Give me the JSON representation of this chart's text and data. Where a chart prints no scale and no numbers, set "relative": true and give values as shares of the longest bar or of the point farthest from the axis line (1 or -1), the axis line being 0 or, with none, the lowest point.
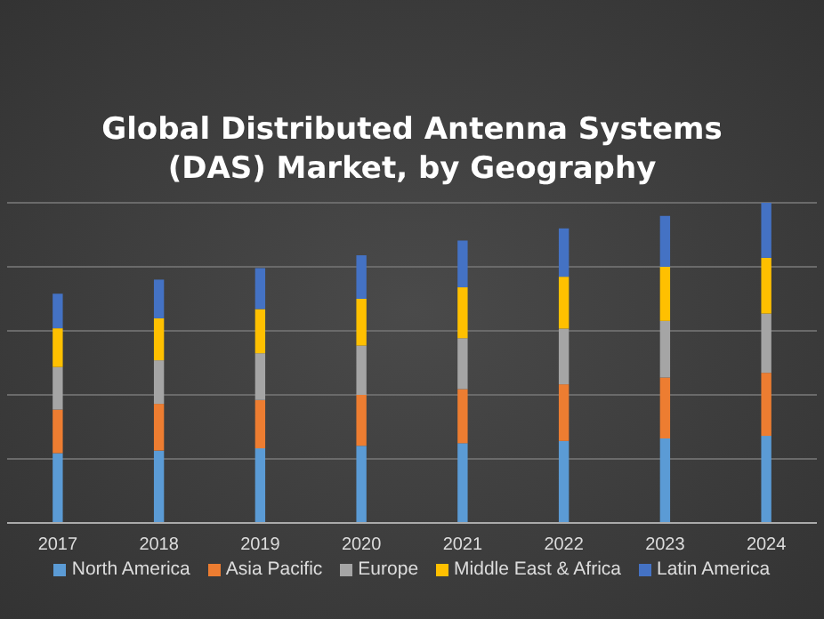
{
  "chart_data": {
    "type": "bar",
    "title": "Global Distributed Antenna Systems (DAS) Market, by Geography",
    "categories": [
      "2017",
      "2018",
      "2019",
      "2020",
      "2021",
      "2022",
      "2023",
      "2024"
    ],
    "stacked": true,
    "relative": true,
    "grid": "y",
    "legend": "bottom",
    "series": [
      {
        "name": "North America",
        "color": "#5b9bd5",
        "values": [
          0.218,
          0.226,
          0.233,
          0.241,
          0.249,
          0.256,
          0.264,
          0.272
        ]
      },
      {
        "name": "Asia Pacific",
        "color": "#ed7d31",
        "values": [
          0.136,
          0.146,
          0.151,
          0.159,
          0.169,
          0.177,
          0.19,
          0.197
        ]
      },
      {
        "name": "Europe",
        "color": "#a5a5a5",
        "values": [
          0.133,
          0.136,
          0.146,
          0.154,
          0.159,
          0.174,
          0.177,
          0.185
        ]
      },
      {
        "name": "Middle East & Africa",
        "color": "#ffc000",
        "values": [
          0.121,
          0.131,
          0.138,
          0.146,
          0.159,
          0.162,
          0.169,
          0.174
        ]
      },
      {
        "name": "Latin America",
        "color": "#4472c4",
        "values": [
          0.108,
          0.121,
          0.128,
          0.136,
          0.146,
          0.151,
          0.159,
          0.172
        ]
      }
    ]
  }
}
